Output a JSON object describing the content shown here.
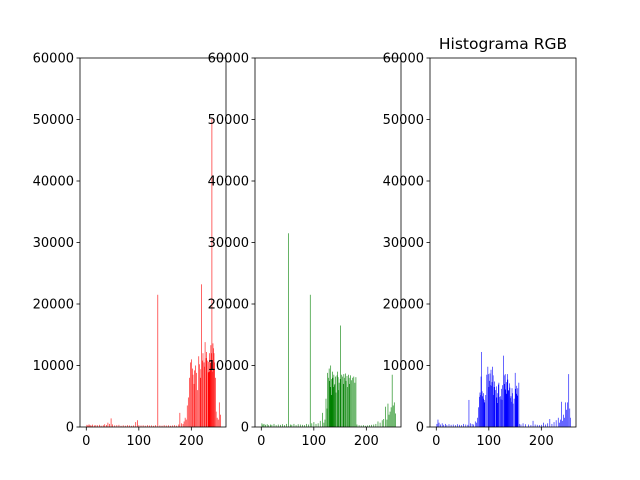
{
  "figure": {
    "title": "Histograma RGB"
  },
  "chart_data": [
    {
      "type": "bar",
      "channel": "red",
      "color": "#ff0000",
      "xlim": [
        -12,
        266
      ],
      "ylim": [
        0,
        60000
      ],
      "xticks": [
        0,
        100,
        200
      ],
      "yticks": [
        0,
        10000,
        20000,
        30000,
        40000,
        50000,
        60000
      ],
      "title": "",
      "points": [
        [
          1,
          350
        ],
        [
          3,
          250
        ],
        [
          5,
          420
        ],
        [
          7,
          300
        ],
        [
          9,
          220
        ],
        [
          12,
          380
        ],
        [
          15,
          260
        ],
        [
          18,
          300
        ],
        [
          21,
          280
        ],
        [
          25,
          350
        ],
        [
          28,
          220
        ],
        [
          32,
          300
        ],
        [
          35,
          450
        ],
        [
          38,
          320
        ],
        [
          41,
          700
        ],
        [
          44,
          500
        ],
        [
          47,
          1400
        ],
        [
          50,
          420
        ],
        [
          54,
          260
        ],
        [
          58,
          300
        ],
        [
          62,
          350
        ],
        [
          66,
          200
        ],
        [
          70,
          280
        ],
        [
          74,
          220
        ],
        [
          78,
          300
        ],
        [
          82,
          250
        ],
        [
          86,
          200
        ],
        [
          90,
          260
        ],
        [
          94,
          800
        ],
        [
          97,
          1100
        ],
        [
          100,
          300
        ],
        [
          104,
          250
        ],
        [
          108,
          280
        ],
        [
          112,
          220
        ],
        [
          116,
          300
        ],
        [
          120,
          240
        ],
        [
          124,
          260
        ],
        [
          128,
          200
        ],
        [
          132,
          300
        ],
        [
          136,
          21500
        ],
        [
          140,
          250
        ],
        [
          144,
          220
        ],
        [
          148,
          300
        ],
        [
          152,
          240
        ],
        [
          156,
          280
        ],
        [
          160,
          200
        ],
        [
          164,
          250
        ],
        [
          168,
          300
        ],
        [
          172,
          220
        ],
        [
          176,
          400
        ],
        [
          178,
          2300
        ],
        [
          181,
          600
        ],
        [
          184,
          500
        ],
        [
          186,
          900
        ],
        [
          188,
          1500
        ],
        [
          190,
          1200
        ],
        [
          192,
          3500
        ],
        [
          194,
          4800
        ],
        [
          196,
          8000
        ],
        [
          198,
          10500
        ],
        [
          200,
          11000
        ],
        [
          202,
          9500
        ],
        [
          203,
          8500
        ],
        [
          205,
          7000
        ],
        [
          206,
          9200
        ],
        [
          208,
          10000
        ],
        [
          210,
          8800
        ],
        [
          212,
          6000
        ],
        [
          214,
          11500
        ],
        [
          215,
          10200
        ],
        [
          217,
          8000
        ],
        [
          218,
          9400
        ],
        [
          219,
          23200
        ],
        [
          221,
          10800
        ],
        [
          222,
          12000
        ],
        [
          224,
          10500
        ],
        [
          225,
          9800
        ],
        [
          226,
          13800
        ],
        [
          228,
          11200
        ],
        [
          229,
          12200
        ],
        [
          230,
          10800
        ],
        [
          232,
          8900
        ],
        [
          233,
          10600
        ],
        [
          234,
          12000
        ],
        [
          235,
          9000
        ],
        [
          236,
          10400
        ],
        [
          237,
          13300
        ],
        [
          238,
          12000
        ],
        [
          239,
          50100
        ],
        [
          240,
          9000
        ],
        [
          241,
          13600
        ],
        [
          242,
          12800
        ],
        [
          243,
          12000
        ],
        [
          244,
          10500
        ],
        [
          246,
          8000
        ],
        [
          247,
          2500
        ],
        [
          249,
          1500
        ],
        [
          251,
          1200
        ],
        [
          253,
          4000
        ],
        [
          255,
          2000
        ]
      ]
    },
    {
      "type": "bar",
      "channel": "green",
      "color": "#008000",
      "xlim": [
        -12,
        266
      ],
      "ylim": [
        0,
        60000
      ],
      "xticks": [
        0,
        100,
        200
      ],
      "yticks": [
        0,
        10000,
        20000,
        30000,
        40000,
        50000,
        60000
      ],
      "title": "",
      "points": [
        [
          1,
          600
        ],
        [
          3,
          400
        ],
        [
          5,
          500
        ],
        [
          8,
          350
        ],
        [
          11,
          450
        ],
        [
          14,
          300
        ],
        [
          17,
          400
        ],
        [
          20,
          350
        ],
        [
          24,
          500
        ],
        [
          28,
          300
        ],
        [
          32,
          400
        ],
        [
          36,
          350
        ],
        [
          40,
          450
        ],
        [
          44,
          300
        ],
        [
          48,
          500
        ],
        [
          52,
          31500
        ],
        [
          55,
          400
        ],
        [
          58,
          350
        ],
        [
          62,
          500
        ],
        [
          66,
          300
        ],
        [
          70,
          450
        ],
        [
          74,
          400
        ],
        [
          78,
          350
        ],
        [
          82,
          300
        ],
        [
          86,
          500
        ],
        [
          90,
          400
        ],
        [
          93,
          21500
        ],
        [
          96,
          600
        ],
        [
          100,
          800
        ],
        [
          104,
          500
        ],
        [
          108,
          600
        ],
        [
          112,
          1000
        ],
        [
          116,
          2300
        ],
        [
          119,
          700
        ],
        [
          121,
          1200
        ],
        [
          123,
          4600
        ],
        [
          125,
          3000
        ],
        [
          126,
          8800
        ],
        [
          128,
          8000
        ],
        [
          129,
          9500
        ],
        [
          130,
          7500
        ],
        [
          131,
          6500
        ],
        [
          132,
          10000
        ],
        [
          133,
          7800
        ],
        [
          134,
          5200
        ],
        [
          135,
          9000
        ],
        [
          136,
          8000
        ],
        [
          137,
          6500
        ],
        [
          138,
          8500
        ],
        [
          139,
          6800
        ],
        [
          140,
          7000
        ],
        [
          141,
          8200
        ],
        [
          142,
          5600
        ],
        [
          144,
          8400
        ],
        [
          145,
          9000
        ],
        [
          146,
          8100
        ],
        [
          147,
          6000
        ],
        [
          148,
          7200
        ],
        [
          150,
          7800
        ],
        [
          151,
          16500
        ],
        [
          153,
          8500
        ],
        [
          154,
          8200
        ],
        [
          156,
          7000
        ],
        [
          157,
          8600
        ],
        [
          158,
          8000
        ],
        [
          160,
          8700
        ],
        [
          161,
          7500
        ],
        [
          163,
          8300
        ],
        [
          164,
          6500
        ],
        [
          166,
          8500
        ],
        [
          167,
          8000
        ],
        [
          168,
          7000
        ],
        [
          170,
          8400
        ],
        [
          172,
          7600
        ],
        [
          174,
          8000
        ],
        [
          176,
          8200
        ],
        [
          178,
          7200
        ],
        [
          180,
          8100
        ],
        [
          182,
          400
        ],
        [
          186,
          300
        ],
        [
          190,
          250
        ],
        [
          194,
          300
        ],
        [
          198,
          200
        ],
        [
          202,
          250
        ],
        [
          206,
          300
        ],
        [
          210,
          350
        ],
        [
          214,
          400
        ],
        [
          218,
          500
        ],
        [
          222,
          900
        ],
        [
          226,
          700
        ],
        [
          230,
          1100
        ],
        [
          233,
          1300
        ],
        [
          236,
          3300
        ],
        [
          239,
          1200
        ],
        [
          241,
          3800
        ],
        [
          243,
          2000
        ],
        [
          245,
          2500
        ],
        [
          247,
          3200
        ],
        [
          249,
          8500
        ],
        [
          251,
          3500
        ],
        [
          253,
          4000
        ],
        [
          255,
          2200
        ]
      ]
    },
    {
      "type": "bar",
      "channel": "blue",
      "color": "#0000ff",
      "xlim": [
        -12,
        266
      ],
      "ylim": [
        0,
        60000
      ],
      "xticks": [
        0,
        100,
        200
      ],
      "yticks": [
        0,
        10000,
        20000,
        30000,
        40000,
        50000,
        60000
      ],
      "title": "Histograma RGB",
      "points": [
        [
          1,
          500
        ],
        [
          3,
          1200
        ],
        [
          5,
          700
        ],
        [
          8,
          400
        ],
        [
          11,
          600
        ],
        [
          14,
          350
        ],
        [
          17,
          500
        ],
        [
          20,
          300
        ],
        [
          24,
          450
        ],
        [
          28,
          350
        ],
        [
          32,
          400
        ],
        [
          36,
          300
        ],
        [
          40,
          450
        ],
        [
          44,
          350
        ],
        [
          48,
          300
        ],
        [
          52,
          500
        ],
        [
          56,
          400
        ],
        [
          60,
          350
        ],
        [
          62,
          4400
        ],
        [
          65,
          600
        ],
        [
          68,
          500
        ],
        [
          71,
          400
        ],
        [
          74,
          900
        ],
        [
          76,
          700
        ],
        [
          78,
          1500
        ],
        [
          80,
          3200
        ],
        [
          82,
          4900
        ],
        [
          83,
          5600
        ],
        [
          84,
          5200
        ],
        [
          85,
          8200
        ],
        [
          86,
          12200
        ],
        [
          87,
          5800
        ],
        [
          88,
          5000
        ],
        [
          89,
          4600
        ],
        [
          90,
          5500
        ],
        [
          91,
          4400
        ],
        [
          92,
          4000
        ],
        [
          94,
          5200
        ],
        [
          96,
          8500
        ],
        [
          98,
          9800
        ],
        [
          99,
          8600
        ],
        [
          100,
          6500
        ],
        [
          101,
          7500
        ],
        [
          102,
          8700
        ],
        [
          103,
          6800
        ],
        [
          104,
          9300
        ],
        [
          105,
          6700
        ],
        [
          106,
          7300
        ],
        [
          107,
          9800
        ],
        [
          108,
          8400
        ],
        [
          109,
          5200
        ],
        [
          110,
          6500
        ],
        [
          111,
          7400
        ],
        [
          112,
          6000
        ],
        [
          114,
          6600
        ],
        [
          115,
          4800
        ],
        [
          116,
          3900
        ],
        [
          117,
          5500
        ],
        [
          118,
          6900
        ],
        [
          119,
          7200
        ],
        [
          120,
          4900
        ],
        [
          122,
          5000
        ],
        [
          123,
          4500
        ],
        [
          124,
          6200
        ],
        [
          125,
          4400
        ],
        [
          126,
          6800
        ],
        [
          128,
          11600
        ],
        [
          129,
          8400
        ],
        [
          130,
          7000
        ],
        [
          131,
          8600
        ],
        [
          132,
          6100
        ],
        [
          133,
          7300
        ],
        [
          134,
          5400
        ],
        [
          135,
          8600
        ],
        [
          136,
          7700
        ],
        [
          137,
          6000
        ],
        [
          138,
          5900
        ],
        [
          139,
          7100
        ],
        [
          140,
          6400
        ],
        [
          141,
          4700
        ],
        [
          142,
          5000
        ],
        [
          143,
          4100
        ],
        [
          144,
          6300
        ],
        [
          145,
          5500
        ],
        [
          146,
          3800
        ],
        [
          148,
          4600
        ],
        [
          150,
          8800
        ],
        [
          151,
          6200
        ],
        [
          152,
          5400
        ],
        [
          153,
          6700
        ],
        [
          154,
          5100
        ],
        [
          155,
          6300
        ],
        [
          157,
          7200
        ],
        [
          158,
          500
        ],
        [
          161,
          400
        ],
        [
          165,
          600
        ],
        [
          170,
          450
        ],
        [
          175,
          400
        ],
        [
          180,
          300
        ],
        [
          184,
          1000
        ],
        [
          188,
          400
        ],
        [
          192,
          350
        ],
        [
          196,
          300
        ],
        [
          200,
          350
        ],
        [
          204,
          700
        ],
        [
          208,
          400
        ],
        [
          212,
          600
        ],
        [
          216,
          1300
        ],
        [
          220,
          500
        ],
        [
          224,
          800
        ],
        [
          228,
          1100
        ],
        [
          232,
          1500
        ],
        [
          234,
          700
        ],
        [
          236,
          1200
        ],
        [
          238,
          4100
        ],
        [
          240,
          1000
        ],
        [
          242,
          2000
        ],
        [
          244,
          1500
        ],
        [
          246,
          4000
        ],
        [
          248,
          2800
        ],
        [
          250,
          4000
        ],
        [
          252,
          8600
        ],
        [
          254,
          3000
        ],
        [
          255,
          1500
        ]
      ]
    }
  ]
}
